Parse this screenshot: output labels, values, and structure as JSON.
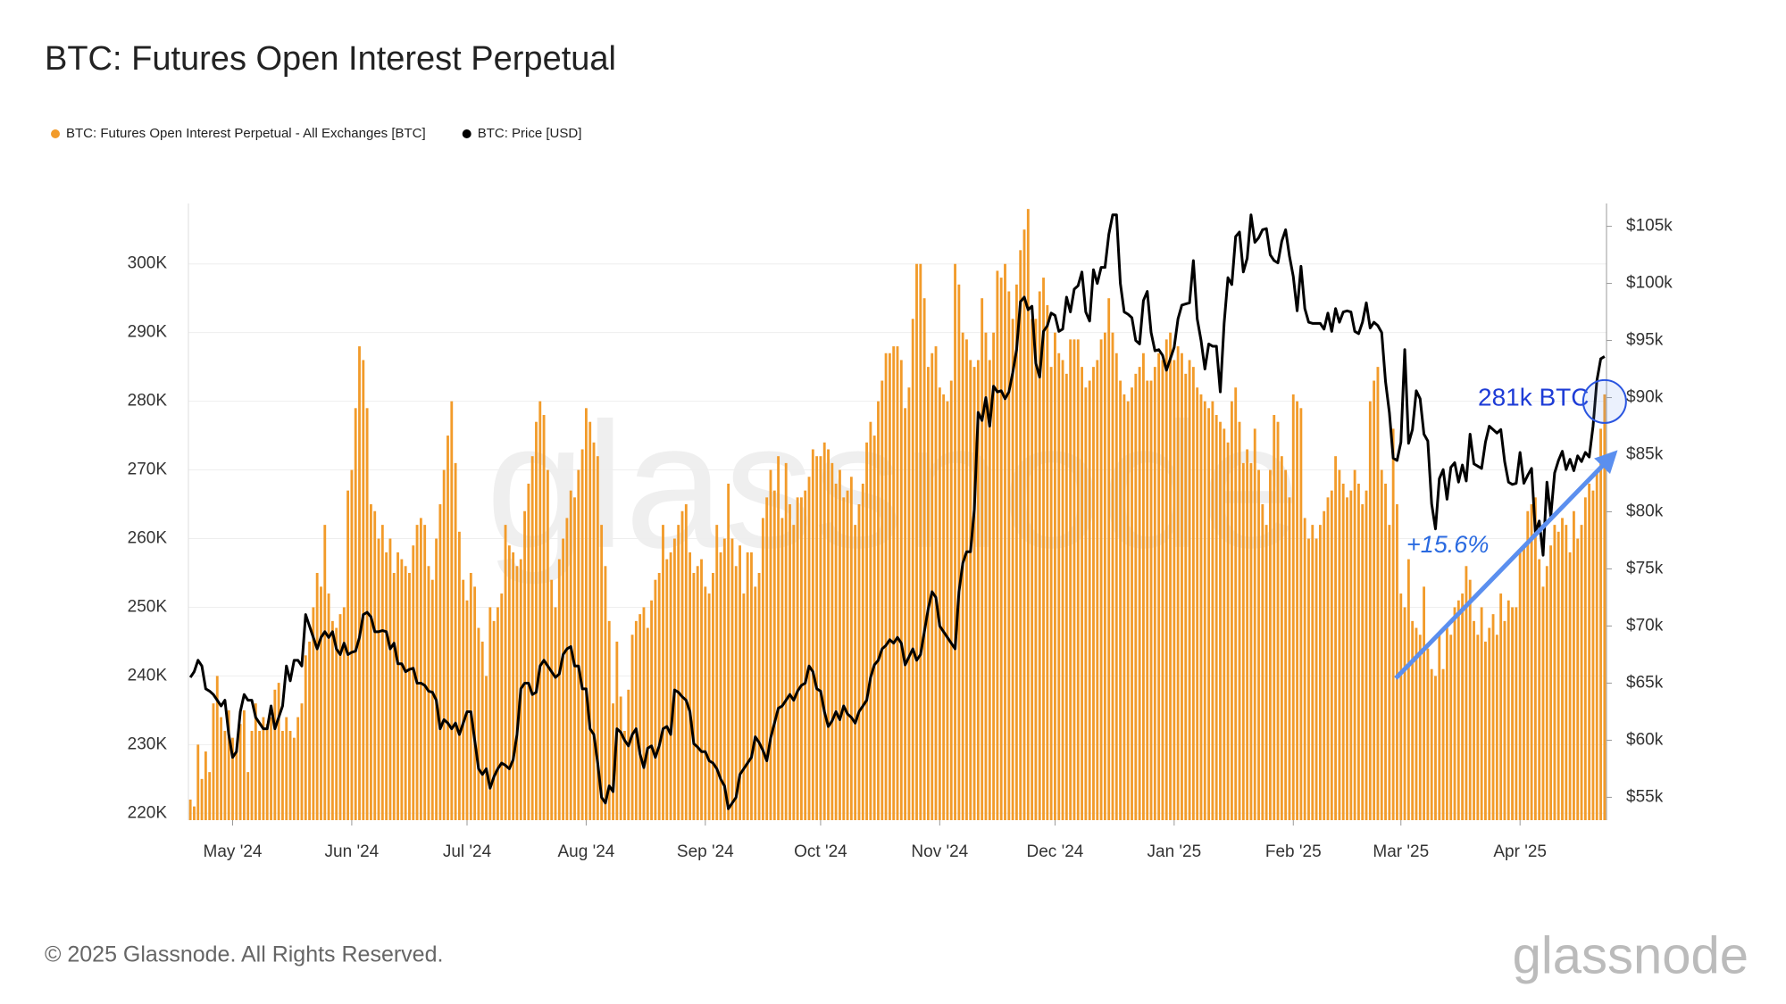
{
  "chart_data": {
    "type": "bar",
    "title": "BTC: Futures Open Interest Perpetual",
    "footer": "© 2025 Glassnode. All Rights Reserved.",
    "watermark": "glassnode",
    "annotations": [
      "281k BTC",
      "+15.6%"
    ],
    "grid": true,
    "categories": [
      null,
      null,
      null,
      null,
      null,
      null,
      null,
      null,
      null,
      null,
      null,
      "May '24",
      null,
      null,
      null,
      null,
      null,
      null,
      null,
      null,
      null,
      null,
      null,
      null,
      null,
      null,
      null,
      null,
      null,
      null,
      null,
      null,
      null,
      null,
      null,
      null,
      null,
      null,
      null,
      null,
      null,
      null,
      "Jun '24",
      null,
      null,
      null,
      null,
      null,
      null,
      null,
      null,
      null,
      null,
      null,
      null,
      null,
      null,
      null,
      null,
      null,
      null,
      null,
      null,
      null,
      null,
      null,
      null,
      null,
      null,
      null,
      null,
      null,
      "Jul '24",
      null,
      null,
      null,
      null,
      null,
      null,
      null,
      null,
      null,
      null,
      null,
      null,
      null,
      null,
      null,
      null,
      null,
      null,
      null,
      null,
      null,
      null,
      null,
      null,
      null,
      null,
      null,
      null,
      null,
      null,
      "Aug '24",
      null,
      null,
      null,
      null,
      null,
      null,
      null,
      null,
      null,
      null,
      null,
      null,
      null,
      null,
      null,
      null,
      null,
      null,
      null,
      null,
      null,
      null,
      null,
      null,
      null,
      null,
      null,
      null,
      null,
      null,
      "Sep '24",
      null,
      null,
      null,
      null,
      null,
      null,
      null,
      null,
      null,
      null,
      null,
      null,
      null,
      null,
      null,
      null,
      null,
      null,
      null,
      null,
      null,
      null,
      null,
      null,
      null,
      null,
      null,
      null,
      null,
      "Oct '24",
      null,
      null,
      null,
      null,
      null,
      null,
      null,
      null,
      null,
      null,
      null,
      null,
      null,
      null,
      null,
      null,
      null,
      null,
      null,
      null,
      null,
      null,
      null,
      null,
      null,
      null,
      null,
      null,
      null,
      null,
      "Nov '24",
      null,
      null,
      null,
      null,
      null,
      null,
      null,
      null,
      null,
      null,
      null,
      null,
      null,
      null,
      null,
      null,
      null,
      null,
      null,
      null,
      null,
      null,
      null,
      null,
      null,
      null,
      null,
      null,
      null,
      "Dec '24",
      null,
      null,
      null,
      null,
      null,
      null,
      null,
      null,
      null,
      null,
      null,
      null,
      null,
      null,
      null,
      null,
      null,
      null,
      null,
      null,
      null,
      null,
      null,
      null,
      null,
      null,
      null,
      null,
      null,
      null,
      "Jan '25",
      null,
      null,
      null,
      null,
      null,
      null,
      null,
      null,
      null,
      null,
      null,
      null,
      null,
      null,
      null,
      null,
      null,
      null,
      null,
      null,
      null,
      null,
      null,
      null,
      null,
      null,
      null,
      null,
      null,
      null,
      "Feb '25",
      null,
      null,
      null,
      null,
      null,
      null,
      null,
      null,
      null,
      null,
      null,
      null,
      null,
      null,
      null,
      null,
      null,
      null,
      null,
      null,
      null,
      null,
      null,
      null,
      null,
      null,
      null,
      "Mar '25",
      null,
      null,
      null,
      null,
      null,
      null,
      null,
      null,
      null,
      null,
      null,
      null,
      null,
      null,
      null,
      null,
      null,
      null,
      null,
      null,
      null,
      null,
      null,
      null,
      null,
      null,
      null,
      null,
      null,
      null,
      "Apr '25",
      null,
      null,
      null,
      null,
      null,
      null,
      null,
      null,
      null,
      null,
      null,
      null,
      null,
      null,
      null,
      null,
      null,
      null,
      null,
      null,
      null,
      null
    ],
    "series": [
      {
        "name": "BTC: Futures Open Interest Perpetual - All Exchanges [BTC]",
        "type": "bar",
        "color": "#f29b2a",
        "values": [
          222000,
          221000,
          230000,
          225000,
          229000,
          226000,
          236000,
          240000,
          234000,
          232000,
          235000,
          231000,
          229000,
          233000,
          235000,
          226000,
          232000,
          236000,
          232000,
          234000,
          233000,
          234000,
          238000,
          239000,
          232000,
          234000,
          232000,
          231000,
          234000,
          236000,
          243000,
          245000,
          250000,
          255000,
          253000,
          262000,
          252000,
          248000,
          247000,
          249000,
          250000,
          267000,
          270000,
          279000,
          288000,
          286000,
          279000,
          265000,
          264000,
          260000,
          262000,
          258000,
          260000,
          255000,
          258000,
          257000,
          256000,
          255000,
          259000,
          262000,
          263000,
          262000,
          256000,
          254000,
          260000,
          265000,
          270000,
          275000,
          280000,
          271000,
          261000,
          254000,
          251000,
          255000,
          253000,
          247000,
          245000,
          240000,
          250000,
          248000,
          250000,
          252000,
          262000,
          259000,
          258000,
          256000,
          257000,
          264000,
          268000,
          272000,
          277000,
          280000,
          278000,
          270000,
          254000,
          250000,
          257000,
          260000,
          263000,
          267000,
          266000,
          270000,
          273000,
          279000,
          277000,
          274000,
          272000,
          262000,
          256000,
          248000,
          236000,
          245000,
          237000,
          232000,
          238000,
          246000,
          248000,
          249000,
          250000,
          247000,
          251000,
          254000,
          255000,
          262000,
          257000,
          258000,
          260000,
          262000,
          264000,
          265000,
          258000,
          255000,
          256000,
          257000,
          253000,
          252000,
          255000,
          262000,
          258000,
          260000,
          268000,
          260000,
          256000,
          259000,
          252000,
          258000,
          258000,
          253000,
          255000,
          263000,
          266000,
          270000,
          267000,
          272000,
          263000,
          271000,
          265000,
          262000,
          266000,
          266000,
          267000,
          269000,
          273000,
          272000,
          272000,
          274000,
          273000,
          271000,
          268000,
          270000,
          266000,
          267000,
          269000,
          262000,
          265000,
          268000,
          274000,
          277000,
          275000,
          280000,
          283000,
          287000,
          287000,
          288000,
          288000,
          286000,
          279000,
          282000,
          292000,
          300000,
          300000,
          295000,
          285000,
          287000,
          288000,
          282000,
          281000,
          280000,
          283000,
          300000,
          297000,
          290000,
          289000,
          286000,
          285000,
          286000,
          295000,
          290000,
          286000,
          290000,
          299000,
          298000,
          300000,
          296000,
          292000,
          297000,
          302000,
          305000,
          308000,
          292000,
          292000,
          296000,
          298000,
          294000,
          285000,
          290000,
          287000,
          286000,
          284000,
          289000,
          289000,
          289000,
          285000,
          282000,
          283000,
          285000,
          286000,
          289000,
          290000,
          295000,
          290000,
          287000,
          283000,
          281000,
          280000,
          282000,
          284000,
          285000,
          287000,
          283000,
          283000,
          285000,
          287000,
          286000,
          289000,
          290000,
          286000,
          288000,
          287000,
          284000,
          286000,
          285000,
          282000,
          281000,
          280000,
          279000,
          280000,
          278000,
          277000,
          276000,
          274000,
          280000,
          282000,
          277000,
          271000,
          273000,
          271000,
          276000,
          270000,
          265000,
          262000,
          270000,
          278000,
          277000,
          272000,
          270000,
          266000,
          281000,
          280000,
          279000,
          263000,
          260000,
          262000,
          260000,
          262000,
          264000,
          266000,
          267000,
          272000,
          270000,
          268000,
          266000,
          267000,
          270000,
          268000,
          265000,
          267000,
          280000,
          283000,
          285000,
          270000,
          268000,
          262000,
          276000,
          265000,
          252000,
          250000,
          257000,
          248000,
          247000,
          246000,
          253000,
          244000,
          241000,
          240000,
          246000,
          241000,
          247000,
          246000,
          250000,
          251000,
          252000,
          256000,
          254000,
          248000,
          246000,
          250000,
          245000,
          247000,
          249000,
          246000,
          252000,
          248000,
          251000,
          250000,
          250000,
          258000,
          259000,
          264000,
          265000,
          266000,
          257000,
          253000,
          256000,
          259000,
          262000,
          261000,
          263000,
          262000,
          258000,
          264000,
          260000,
          262000,
          266000,
          268000,
          267000,
          270000,
          276000,
          281000
        ]
      },
      {
        "name": "BTC: Price [USD]",
        "type": "line",
        "axis": "y2",
        "color": "#000000",
        "values": [
          65500,
          66000,
          67000,
          66500,
          64500,
          64300,
          64000,
          63500,
          63000,
          63500,
          60500,
          58500,
          59000,
          62500,
          64000,
          63500,
          63500,
          62000,
          61500,
          61000,
          61000,
          63000,
          61000,
          62000,
          63000,
          66500,
          65200,
          67000,
          67000,
          66500,
          71000,
          70000,
          69000,
          68000,
          69000,
          69500,
          69000,
          69500,
          68000,
          67500,
          68500,
          67500,
          67700,
          67800,
          69000,
          71000,
          71200,
          70800,
          69500,
          69500,
          69600,
          69500,
          68000,
          68500,
          66700,
          66700,
          66000,
          66200,
          66300,
          65000,
          65000,
          64800,
          64300,
          64200,
          63500,
          61000,
          61800,
          61500,
          61000,
          61500,
          60500,
          61500,
          62500,
          62500,
          60000,
          57500,
          57000,
          57500,
          55800,
          56800,
          57500,
          58000,
          57800,
          57500,
          58300,
          60500,
          64500,
          65000,
          65000,
          64000,
          64200,
          66500,
          67000,
          66500,
          66000,
          65500,
          65800,
          67500,
          68000,
          68200,
          66500,
          66500,
          64500,
          64500,
          61000,
          60500,
          58000,
          55000,
          54500,
          56000,
          55500,
          61000,
          60700,
          60000,
          59500,
          60500,
          61000,
          58800,
          57600,
          59300,
          59500,
          58500,
          59500,
          61000,
          61200,
          60500,
          64400,
          64200,
          63800,
          63500,
          62500,
          59700,
          59400,
          59000,
          59000,
          58200,
          58000,
          57500,
          56600,
          56000,
          54000,
          54500,
          55000,
          57000,
          57500,
          58000,
          58500,
          60300,
          59800,
          59100,
          58200,
          60200,
          61500,
          62800,
          63000,
          63500,
          64000,
          63500,
          64300,
          64800,
          65000,
          66500,
          66000,
          64500,
          64300,
          62500,
          61200,
          61700,
          62500,
          61800,
          63000,
          62300,
          62000,
          61500,
          62500,
          63000,
          63500,
          65500,
          66600,
          67000,
          68000,
          68300,
          68800,
          68500,
          69000,
          68500,
          66600,
          67300,
          68000,
          67000,
          67500,
          69500,
          71500,
          73000,
          72500,
          70000,
          69500,
          69000,
          68500,
          68000,
          73000,
          75500,
          76500,
          76500,
          80200,
          88700,
          88000,
          90000,
          87500,
          91000,
          90500,
          90600,
          89900,
          90500,
          92200,
          94200,
          98400,
          98800,
          97700,
          98000,
          93000,
          91800,
          95800,
          96300,
          97400,
          97200,
          95800,
          96000,
          98800,
          97500,
          99500,
          99800,
          101000,
          97500,
          96700,
          101200,
          100000,
          101400,
          101400,
          104300,
          106000,
          106000,
          100000,
          97500,
          97300,
          97000,
          95000,
          94700,
          98500,
          99300,
          95700,
          94100,
          94200,
          93700,
          92400,
          93400,
          94400,
          96900,
          98100,
          98200,
          98300,
          102000,
          96900,
          95000,
          92500,
          94700,
          94500,
          94500,
          90500,
          96500,
          100500,
          99900,
          104100,
          104500,
          101000,
          102200,
          106000,
          103600,
          104000,
          104700,
          104800,
          102500,
          102000,
          101800,
          103700,
          104700,
          102400,
          100600,
          97600,
          101500,
          97800,
          96600,
          96500,
          96500,
          96500,
          96000,
          97400,
          95800,
          97800,
          96600,
          97500,
          97600,
          97500,
          95800,
          95600,
          96600,
          98300,
          96100,
          96600,
          96300,
          95700,
          91400,
          88700,
          84700,
          84500,
          86100,
          94200,
          86000,
          87200,
          90600,
          89900,
          86800,
          86200,
          80700,
          78500,
          82900,
          83700,
          81100,
          83900,
          84300,
          82600,
          84100,
          82700,
          86800,
          84200,
          84000,
          83800,
          86100,
          87500,
          87200,
          86900,
          87200,
          84400,
          82600,
          82400,
          82500,
          85200,
          82500,
          83200,
          83800,
          78200,
          79200,
          76200,
          82600,
          79600,
          83400,
          84500,
          85300,
          83700,
          84600,
          83600,
          84900,
          84400,
          85200,
          84800,
          87500,
          91500,
          93400,
          93600
        ]
      }
    ],
    "ylim": [
      219000,
      308800
    ],
    "yticks": [
      {
        "value": 220000,
        "label": "220K"
      },
      {
        "value": 230000,
        "label": "230K"
      },
      {
        "value": 240000,
        "label": "240K"
      },
      {
        "value": 250000,
        "label": "250K"
      },
      {
        "value": 260000,
        "label": "260K"
      },
      {
        "value": 270000,
        "label": "270K"
      },
      {
        "value": 280000,
        "label": "280K"
      },
      {
        "value": 290000,
        "label": "290K"
      },
      {
        "value": 300000,
        "label": "300K"
      }
    ],
    "y2lim": [
      53000,
      107000
    ],
    "y2ticks": [
      {
        "value": 55000,
        "label": "$55k"
      },
      {
        "value": 60000,
        "label": "$60k"
      },
      {
        "value": 65000,
        "label": "$65k"
      },
      {
        "value": 70000,
        "label": "$70k"
      },
      {
        "value": 75000,
        "label": "$75k"
      },
      {
        "value": 80000,
        "label": "$80k"
      },
      {
        "value": 85000,
        "label": "$85k"
      },
      {
        "value": 90000,
        "label": "$90k"
      },
      {
        "value": 95000,
        "label": "$95k"
      },
      {
        "value": 100000,
        "label": "$100k"
      },
      {
        "value": 105000,
        "label": "$105k"
      }
    ]
  }
}
